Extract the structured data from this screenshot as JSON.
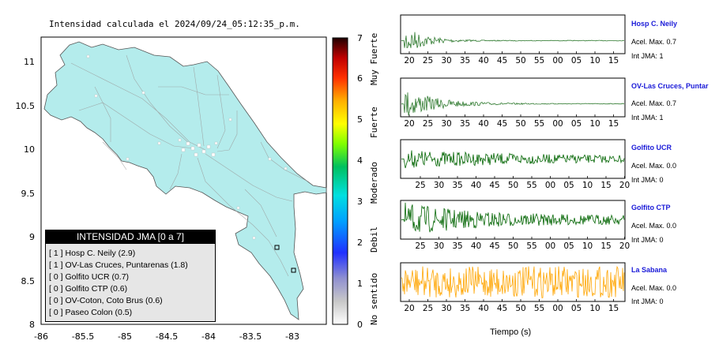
{
  "map": {
    "title": "Intensidad calculada el 2024/09/24_05:12:35_p.m.",
    "xticks": [
      "-86",
      "-85.5",
      "-85",
      "-84.5",
      "-84",
      "-83.5",
      "-83"
    ],
    "yticks": [
      "11",
      "10.5",
      "10",
      "9.5",
      "9",
      "8.5",
      "8"
    ],
    "land_color": "#b4ecec"
  },
  "colorbar": {
    "ticks": [
      "0",
      "1",
      "2",
      "3",
      "4",
      "5",
      "6",
      "7"
    ],
    "category_labels": [
      "No sentido",
      "Debil",
      "Moderado",
      "Fuerte",
      "Muy Fuerte"
    ]
  },
  "legend": {
    "title": "INTENSIDAD JMA [0 a 7]",
    "items": [
      {
        "level": "[ 1 ]",
        "name": "Hosp C. Neily (2.9)"
      },
      {
        "level": "[ 1 ]",
        "name": "OV-Las Cruces, Puntarenas (1.8)"
      },
      {
        "level": "[ 0 ]",
        "name": "Golfito UCR (0.7)"
      },
      {
        "level": "[ 0 ]",
        "name": "Golfito CTP (0.6)"
      },
      {
        "level": "[ 0 ]",
        "name": "OV-Coton, Coto Brus (0.6)"
      },
      {
        "level": "[ 0 ]",
        "name": "Paseo Colon (0.5)"
      }
    ]
  },
  "stations": [
    {
      "name": "Hosp C. Neily",
      "accel": "Acel. Max. 0.7",
      "int": "Int JMA: 1",
      "color": "#2f7a2f"
    },
    {
      "name": "OV-Las Cruces, Puntar",
      "accel": "Acel. Max. 0.7",
      "int": "Int JMA: 1",
      "color": "#2f7a2f"
    },
    {
      "name": "Golfito UCR",
      "accel": "Acel. Max. 0.0",
      "int": "Int JMA: 0",
      "color": "#006400"
    },
    {
      "name": "Golfito CTP",
      "accel": "Acel. Max. 0.0",
      "int": "Int JMA: 0",
      "color": "#006400"
    },
    {
      "name": "La Sabana",
      "accel": "Acel. Max. 0.0",
      "int": "Int JMA: 0",
      "color": "#ffa500"
    }
  ],
  "xlabel": "Tiempo (s)",
  "chart_data": [
    {
      "type": "map",
      "title": "Intensidad calculada el 2024/09/24_05:12:35_p.m.",
      "xlim": [
        -86,
        -82.6
      ],
      "ylim": [
        8,
        11.3
      ]
    },
    {
      "type": "line",
      "name": "Hosp C. Neily",
      "x_ticks": [
        "20",
        "25",
        "30",
        "35",
        "40",
        "45",
        "50",
        "55",
        "00",
        "05",
        "10",
        "15"
      ]
    },
    {
      "type": "line",
      "name": "OV-Las Cruces, Puntar",
      "x_ticks": [
        "20",
        "25",
        "30",
        "35",
        "40",
        "45",
        "50",
        "55",
        "00",
        "05",
        "10",
        "15"
      ]
    },
    {
      "type": "line",
      "name": "Golfito UCR",
      "x_ticks": [
        "25",
        "30",
        "35",
        "40",
        "45",
        "50",
        "55",
        "00",
        "05",
        "10",
        "15",
        "20"
      ]
    },
    {
      "type": "line",
      "name": "Golfito CTP",
      "x_ticks": [
        "25",
        "30",
        "35",
        "40",
        "45",
        "50",
        "55",
        "00",
        "05",
        "10",
        "15",
        "20"
      ]
    },
    {
      "type": "line",
      "name": "La Sabana",
      "x_ticks": [
        "20",
        "25",
        "30",
        "35",
        "40",
        "45",
        "50",
        "55",
        "00",
        "05",
        "10",
        "15"
      ]
    }
  ]
}
